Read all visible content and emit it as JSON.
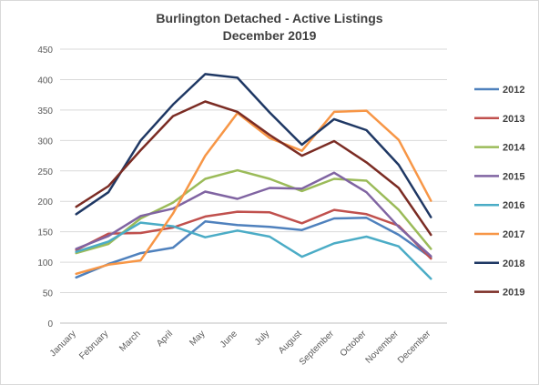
{
  "chart_data": {
    "type": "line",
    "title": "Burlington Detached - Active Listings",
    "subtitle": "December 2019",
    "xlabel": "",
    "ylabel": "",
    "ylim": [
      0,
      450
    ],
    "yticks": [
      0,
      50,
      100,
      150,
      200,
      250,
      300,
      350,
      400,
      450
    ],
    "grid": "horizontal",
    "legend_position": "right",
    "categories": [
      "January",
      "February",
      "March",
      "April",
      "May",
      "June",
      "July",
      "August",
      "September",
      "October",
      "November",
      "December"
    ],
    "series": [
      {
        "name": "2012",
        "color": "#4f81bd",
        "values": [
          75,
          97,
          115,
          124,
          167,
          161,
          158,
          153,
          172,
          173,
          145,
          108
        ]
      },
      {
        "name": "2013",
        "color": "#c0504d",
        "values": [
          120,
          147,
          148,
          157,
          175,
          183,
          182,
          164,
          186,
          179,
          160,
          106
        ]
      },
      {
        "name": "2014",
        "color": "#9bbb59",
        "values": [
          115,
          130,
          172,
          198,
          237,
          251,
          237,
          217,
          237,
          234,
          186,
          122
        ]
      },
      {
        "name": "2015",
        "color": "#8064a2",
        "values": [
          122,
          143,
          176,
          188,
          216,
          204,
          222,
          221,
          247,
          215,
          158,
          110
        ]
      },
      {
        "name": "2016",
        "color": "#4bacc6",
        "values": [
          117,
          134,
          165,
          159,
          141,
          152,
          142,
          109,
          131,
          142,
          126,
          73
        ]
      },
      {
        "name": "2017",
        "color": "#f79646",
        "values": [
          81,
          96,
          103,
          180,
          275,
          345,
          304,
          283,
          347,
          349,
          301,
          201
        ]
      },
      {
        "name": "2018",
        "color": "#1f3864",
        "values": [
          179,
          215,
          300,
          359,
          409,
          403,
          346,
          293,
          335,
          317,
          260,
          174
        ]
      },
      {
        "name": "2019",
        "color": "#7b2c24",
        "values": [
          191,
          225,
          284,
          340,
          364,
          347,
          309,
          275,
          299,
          264,
          222,
          145
        ]
      }
    ]
  }
}
